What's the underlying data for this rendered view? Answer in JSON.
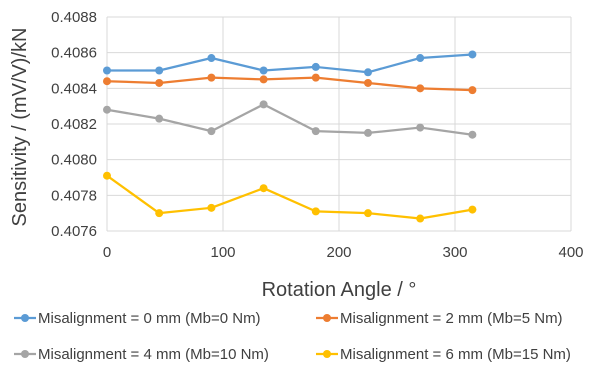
{
  "chart_data": {
    "type": "line",
    "title": "",
    "xlabel": "Rotation Angle / °",
    "ylabel": "Sensitivity / (mV/V)/kN",
    "x": [
      0,
      45,
      90,
      135,
      180,
      225,
      270,
      315
    ],
    "xlim": [
      0,
      400
    ],
    "ylim": [
      0.4076,
      0.4088
    ],
    "x_ticks": [
      0,
      100,
      200,
      300,
      400
    ],
    "y_ticks": [
      0.4076,
      0.4078,
      0.408,
      0.4082,
      0.4084,
      0.4086,
      0.4088
    ],
    "y_tick_labels": [
      "0.4076",
      "0.4078",
      "0.4080",
      "0.4082",
      "0.4084",
      "0.4086",
      "0.4088"
    ],
    "grid": true,
    "legend_position": "bottom",
    "series": [
      {
        "name": "Misalignment = 0 mm (Mb=0 Nm)",
        "color": "#5B9BD5",
        "values": [
          0.4085,
          0.4085,
          0.40857,
          0.4085,
          0.40852,
          0.40849,
          0.40857,
          0.40859
        ]
      },
      {
        "name": "Misalignment = 2 mm (Mb=5 Nm)",
        "color": "#ED7D31",
        "values": [
          0.40844,
          0.40843,
          0.40846,
          0.40845,
          0.40846,
          0.40843,
          0.4084,
          0.40839
        ]
      },
      {
        "name": "Misalignment = 4 mm (Mb=10 Nm)",
        "color": "#A5A5A5",
        "values": [
          0.40828,
          0.40823,
          0.40816,
          0.40831,
          0.40816,
          0.40815,
          0.40818,
          0.40814
        ]
      },
      {
        "name": "Misalignment = 6 mm (Mb=15 Nm)",
        "color": "#FFC000",
        "values": [
          0.40791,
          0.4077,
          0.40773,
          0.40784,
          0.40771,
          0.4077,
          0.40767,
          0.40772
        ]
      }
    ]
  }
}
